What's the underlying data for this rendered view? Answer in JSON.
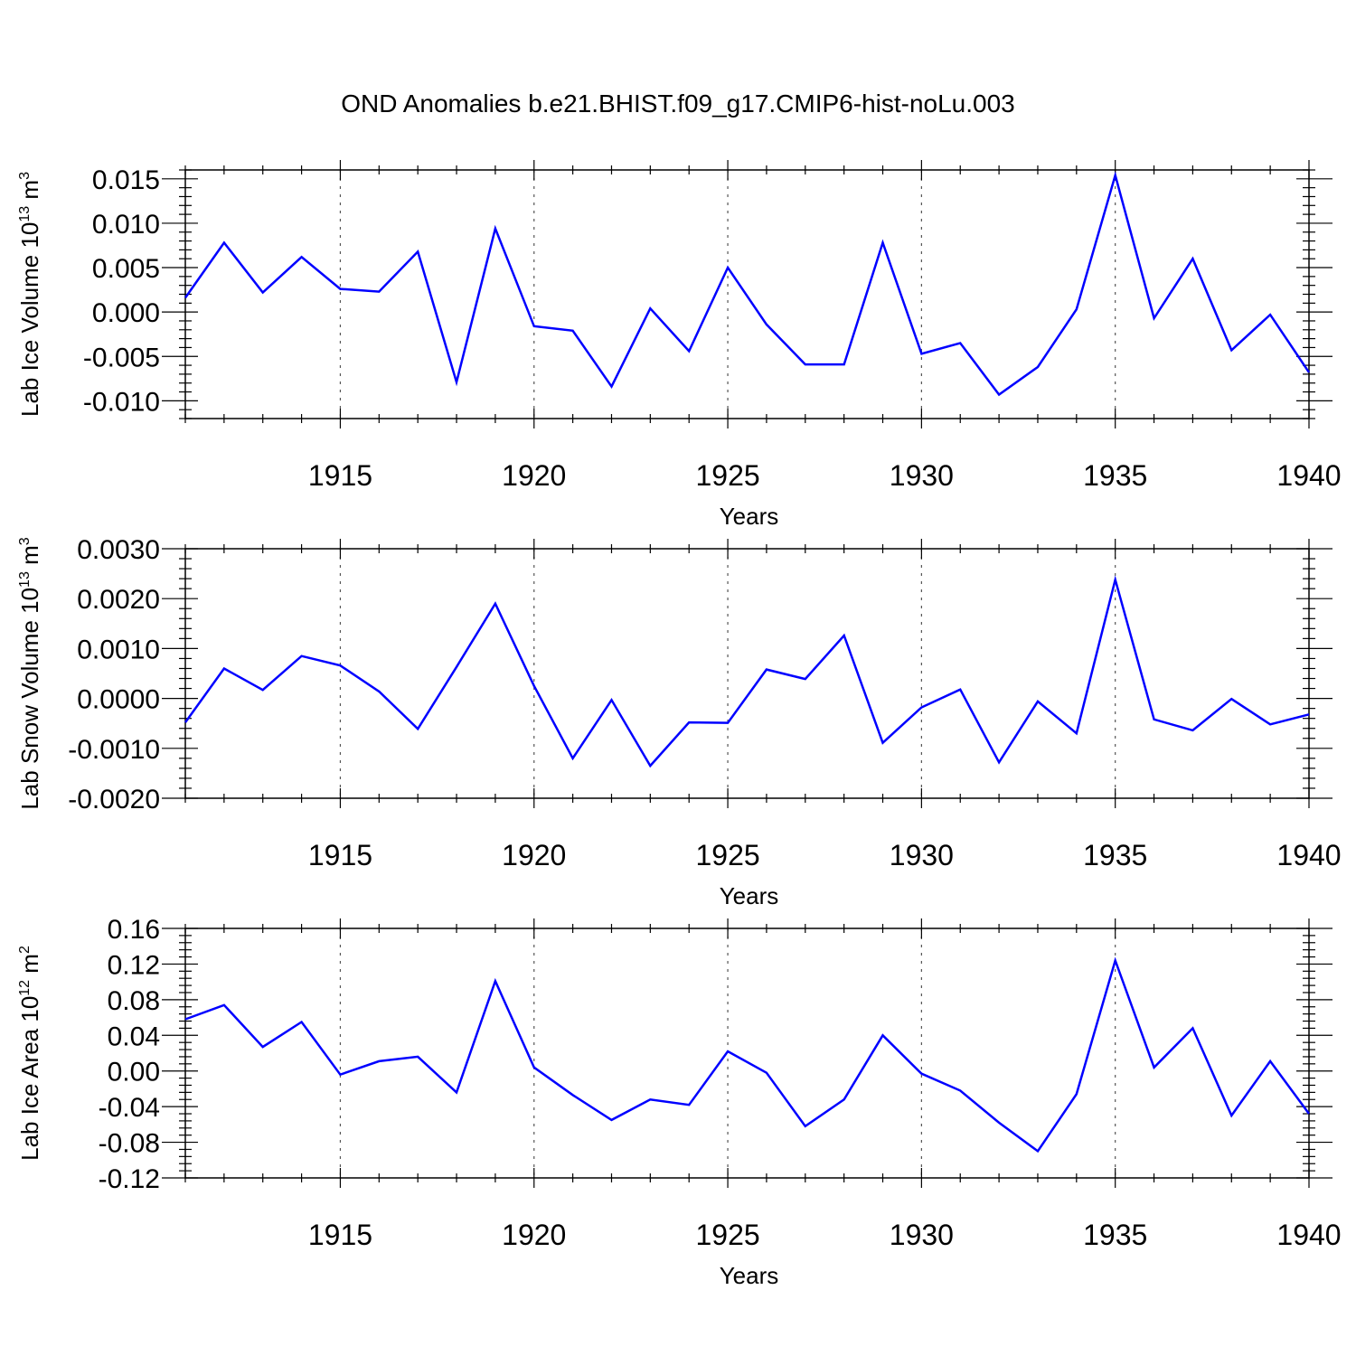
{
  "title": "OND Anomalies b.e21.BHIST.f09_g17.CMIP6-hist-noLu.003",
  "colors": {
    "series": "#0000ff",
    "grid": "#555555"
  },
  "chart_data": [
    {
      "type": "line",
      "ylabel": "Lab Ice Volume 10",
      "ylabel_exp": "13",
      "ylabel_unit": " m",
      "ylabel_unit_exp": "3",
      "xlabel": "Years",
      "xlim": [
        1911,
        1940
      ],
      "ylim": [
        -0.012,
        0.016
      ],
      "yticks": [
        -0.01,
        -0.005,
        0.0,
        0.005,
        0.01,
        0.015
      ],
      "ytick_labels": [
        "-0.010",
        "-0.005",
        "0.000",
        "0.005",
        "0.010",
        "0.015"
      ],
      "xticks": [
        1915,
        1920,
        1925,
        1930,
        1935,
        1940
      ],
      "xtick_labels": [
        "1915",
        "1920",
        "1925",
        "1930",
        "1935",
        "1940"
      ],
      "grid": "vertical dashed at major x ticks",
      "x": [
        1911,
        1912,
        1913,
        1914,
        1915,
        1916,
        1917,
        1918,
        1919,
        1920,
        1921,
        1922,
        1923,
        1924,
        1925,
        1926,
        1927,
        1928,
        1929,
        1930,
        1931,
        1932,
        1933,
        1934,
        1935,
        1936,
        1937,
        1938,
        1939,
        1940
      ],
      "values": [
        0.0016,
        0.0078,
        0.0022,
        0.0062,
        0.0026,
        0.0023,
        0.0068,
        -0.0079,
        0.0094,
        -0.0016,
        -0.0021,
        -0.0084,
        0.0004,
        -0.0044,
        0.005,
        -0.0014,
        -0.0059,
        -0.0059,
        0.0078,
        -0.0047,
        -0.0035,
        -0.0093,
        -0.0062,
        0.0003,
        0.0154,
        -0.0007,
        0.006,
        -0.0043,
        -0.0003,
        -0.0068
      ]
    },
    {
      "type": "line",
      "ylabel": "Lab Snow Volume 10",
      "ylabel_exp": "13",
      "ylabel_unit": " m",
      "ylabel_unit_exp": "3",
      "xlabel": "Years",
      "xlim": [
        1911,
        1940
      ],
      "ylim": [
        -0.002,
        0.003
      ],
      "yticks": [
        -0.002,
        -0.001,
        0.0,
        0.001,
        0.002,
        0.003
      ],
      "ytick_labels": [
        "-0.0020",
        "-0.0010",
        "0.0000",
        "0.0010",
        "0.0020",
        "0.0030"
      ],
      "xticks": [
        1915,
        1920,
        1925,
        1930,
        1935,
        1940
      ],
      "xtick_labels": [
        "1915",
        "1920",
        "1925",
        "1930",
        "1935",
        "1940"
      ],
      "grid": "vertical dashed at major x ticks",
      "x": [
        1911,
        1912,
        1913,
        1914,
        1915,
        1916,
        1917,
        1918,
        1919,
        1920,
        1921,
        1922,
        1923,
        1924,
        1925,
        1926,
        1927,
        1928,
        1929,
        1930,
        1931,
        1932,
        1933,
        1934,
        1935,
        1936,
        1937,
        1938,
        1939,
        1940
      ],
      "values": [
        -0.00048,
        0.0006,
        0.00017,
        0.00085,
        0.00066,
        0.00014,
        -0.00061,
        0.00063,
        0.0019,
        0.00025,
        -0.0012,
        -3e-05,
        -0.00135,
        -0.00048,
        -0.00049,
        0.00058,
        0.00039,
        0.00126,
        -0.00089,
        -0.00018,
        0.00018,
        -0.00128,
        -6e-05,
        -0.0007,
        0.00238,
        -0.00042,
        -0.00064,
        -1e-05,
        -0.00052,
        -0.00032
      ]
    },
    {
      "type": "line",
      "ylabel": "Lab Ice Area 10",
      "ylabel_exp": "12",
      "ylabel_unit": " m",
      "ylabel_unit_exp": "2",
      "xlabel": "Years",
      "xlim": [
        1911,
        1940
      ],
      "ylim": [
        -0.12,
        0.16
      ],
      "yticks": [
        -0.12,
        -0.08,
        -0.04,
        0.0,
        0.04,
        0.08,
        0.12,
        0.16
      ],
      "ytick_labels": [
        "-0.12",
        "-0.08",
        "-0.04",
        "0.00",
        "0.04",
        "0.08",
        "0.12",
        "0.16"
      ],
      "xticks": [
        1915,
        1920,
        1925,
        1930,
        1935,
        1940
      ],
      "xtick_labels": [
        "1915",
        "1920",
        "1925",
        "1930",
        "1935",
        "1940"
      ],
      "grid": "vertical dashed at major x ticks",
      "x": [
        1911,
        1912,
        1913,
        1914,
        1915,
        1916,
        1917,
        1918,
        1919,
        1920,
        1921,
        1922,
        1923,
        1924,
        1925,
        1926,
        1927,
        1928,
        1929,
        1930,
        1931,
        1932,
        1933,
        1934,
        1935,
        1936,
        1937,
        1938,
        1939,
        1940
      ],
      "values": [
        0.058,
        0.074,
        0.027,
        0.055,
        -0.004,
        0.011,
        0.016,
        -0.024,
        0.101,
        0.004,
        -0.027,
        -0.055,
        -0.032,
        -0.038,
        0.022,
        -0.002,
        -0.062,
        -0.032,
        0.04,
        -0.003,
        -0.022,
        -0.058,
        -0.09,
        -0.026,
        0.124,
        0.004,
        0.048,
        -0.05,
        0.011,
        -0.048
      ]
    }
  ]
}
